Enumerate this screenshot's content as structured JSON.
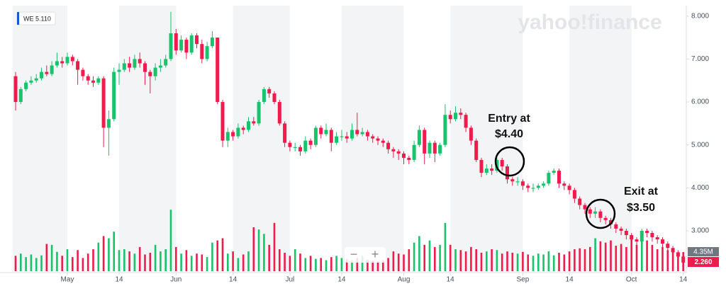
{
  "chart_data": {
    "type": "candlestick",
    "symbol_label": "WE 5.110",
    "watermark": "yahoo!finance",
    "up_color": "#17c36b",
    "down_color": "#ef1b4c",
    "ylim": [
      2.06,
      8.21
    ],
    "yticks": [
      {
        "value": 3,
        "label": "3.000"
      },
      {
        "value": 4,
        "label": "4.000"
      },
      {
        "value": 5,
        "label": "5.000"
      },
      {
        "value": 6,
        "label": "6.000"
      },
      {
        "value": 7,
        "label": "7.000"
      },
      {
        "value": 8,
        "label": "8.000"
      }
    ],
    "xticks": [
      {
        "value": 10,
        "label": "May"
      },
      {
        "value": 20,
        "label": "14"
      },
      {
        "value": 31,
        "label": "Jun"
      },
      {
        "value": 42,
        "label": "14"
      },
      {
        "value": 53,
        "label": "Jul"
      },
      {
        "value": 63,
        "label": "14"
      },
      {
        "value": 75,
        "label": "Aug"
      },
      {
        "value": 84,
        "label": "14"
      },
      {
        "value": 98,
        "label": "Sep"
      },
      {
        "value": 107,
        "label": "14"
      },
      {
        "value": 119,
        "label": "Oct"
      },
      {
        "value": 129,
        "label": "14"
      }
    ],
    "open": [
      6.6,
      6.0,
      6.3,
      6.45,
      6.5,
      6.55,
      6.7,
      6.65,
      6.85,
      6.95,
      6.9,
      7.05,
      6.95,
      6.75,
      6.6,
      6.5,
      6.45,
      6.55,
      5.4,
      5.6,
      6.7,
      6.75,
      6.9,
      6.8,
      7.0,
      6.9,
      6.7,
      6.6,
      6.8,
      6.85,
      7.0,
      7.6,
      7.2,
      7.45,
      7.15,
      7.55,
      7.35,
      7.0,
      7.3,
      7.5,
      6.0,
      5.1,
      5.3,
      5.2,
      5.4,
      5.35,
      5.55,
      5.5,
      6.0,
      6.3,
      6.2,
      6.0,
      5.5,
      5.05,
      4.95,
      4.95,
      4.85,
      5.1,
      5.0,
      5.4,
      5.25,
      5.35,
      5.05,
      5.2,
      5.2,
      5.15,
      5.35,
      5.25,
      5.3,
      5.2,
      5.15,
      5.1,
      5.05,
      4.9,
      4.85,
      4.8,
      4.7,
      4.65,
      5.0,
      5.35,
      4.8,
      5.05,
      4.8,
      5.0,
      5.7,
      5.6,
      5.75,
      5.7,
      5.4,
      5.1,
      4.65,
      4.35,
      4.45,
      4.4,
      4.65,
      4.5,
      4.2,
      4.15,
      4.15,
      4.05,
      4.0,
      4.0,
      4.05,
      4.1,
      4.35,
      4.4,
      4.1,
      4.05,
      3.95,
      3.75,
      3.6,
      3.5,
      3.4,
      3.45,
      3.3,
      3.25,
      3.15,
      3.05,
      3.0,
      2.9,
      2.8,
      2.75,
      3.0,
      2.95,
      2.85,
      2.8,
      2.7,
      2.6,
      2.5,
      2.4
    ],
    "high": [
      6.7,
      6.35,
      6.5,
      6.6,
      6.65,
      6.8,
      6.85,
      6.95,
      7.15,
      7.05,
      7.15,
      7.1,
      7.0,
      6.8,
      6.65,
      6.6,
      6.6,
      6.6,
      5.8,
      6.8,
      6.9,
      7.0,
      7.05,
      7.1,
      7.15,
      6.95,
      6.75,
      6.9,
      7.0,
      7.1,
      8.1,
      7.7,
      7.55,
      7.5,
      7.6,
      7.6,
      7.45,
      7.4,
      7.65,
      7.5,
      6.05,
      5.4,
      5.35,
      5.5,
      5.45,
      5.65,
      5.65,
      6.05,
      6.35,
      6.35,
      6.25,
      6.05,
      5.55,
      5.1,
      5.05,
      5.0,
      5.2,
      5.15,
      5.45,
      5.45,
      5.5,
      5.4,
      5.3,
      5.35,
      5.3,
      5.5,
      5.75,
      5.4,
      5.35,
      5.25,
      5.2,
      5.15,
      5.1,
      4.95,
      4.9,
      4.85,
      4.75,
      5.1,
      5.45,
      5.4,
      5.1,
      5.1,
      5.05,
      5.95,
      5.8,
      5.9,
      5.85,
      5.75,
      5.45,
      5.15,
      4.7,
      4.55,
      4.55,
      4.7,
      4.7,
      4.55,
      4.25,
      4.25,
      4.2,
      4.1,
      4.1,
      4.1,
      4.15,
      4.4,
      4.45,
      4.45,
      4.15,
      4.1,
      4.0,
      3.8,
      3.65,
      3.55,
      3.55,
      3.5,
      3.35,
      3.3,
      3.2,
      3.1,
      3.05,
      2.95,
      2.85,
      3.05,
      3.05,
      3.0,
      2.9,
      2.85,
      2.75,
      2.65,
      2.55,
      2.45
    ],
    "low": [
      5.8,
      5.95,
      6.25,
      6.4,
      6.45,
      6.5,
      6.6,
      6.6,
      6.8,
      6.8,
      6.85,
      6.85,
      6.4,
      6.5,
      6.4,
      6.35,
      6.4,
      4.95,
      4.75,
      5.55,
      6.4,
      6.7,
      6.7,
      6.75,
      6.8,
      6.4,
      6.2,
      6.5,
      6.7,
      6.8,
      6.95,
      7.1,
      7.15,
      7.0,
      7.1,
      7.25,
      6.9,
      6.95,
      7.25,
      5.95,
      4.95,
      4.95,
      5.1,
      5.15,
      5.25,
      5.3,
      5.45,
      5.45,
      5.95,
      6.1,
      5.95,
      5.45,
      4.95,
      4.85,
      4.85,
      4.75,
      4.8,
      4.9,
      4.95,
      5.15,
      5.2,
      4.85,
      5.0,
      5.1,
      5.05,
      5.1,
      5.2,
      5.2,
      5.1,
      5.05,
      5.0,
      4.95,
      4.8,
      4.7,
      4.65,
      4.55,
      4.55,
      4.6,
      4.95,
      4.55,
      4.7,
      4.6,
      4.75,
      4.95,
      5.5,
      5.55,
      5.6,
      5.3,
      5.0,
      4.6,
      4.25,
      4.3,
      4.3,
      4.35,
      4.4,
      4.1,
      4.05,
      4.05,
      3.95,
      3.9,
      3.9,
      3.95,
      4.0,
      4.05,
      4.3,
      4.0,
      3.95,
      3.85,
      3.65,
      3.5,
      3.4,
      3.3,
      3.3,
      3.2,
      3.15,
      3.05,
      2.95,
      2.9,
      2.8,
      2.7,
      2.65,
      2.7,
      2.85,
      2.75,
      2.7,
      2.6,
      2.5,
      2.4,
      2.3,
      2.2
    ],
    "close": [
      6.0,
      6.3,
      6.45,
      6.5,
      6.55,
      6.7,
      6.65,
      6.85,
      6.95,
      6.9,
      7.05,
      6.95,
      6.75,
      6.6,
      6.5,
      6.45,
      6.55,
      5.4,
      5.6,
      6.7,
      6.75,
      6.9,
      6.8,
      7.0,
      6.9,
      6.7,
      6.6,
      6.8,
      6.85,
      7.0,
      7.6,
      7.2,
      7.45,
      7.15,
      7.55,
      7.35,
      7.0,
      7.3,
      7.5,
      6.0,
      5.1,
      5.3,
      5.2,
      5.4,
      5.35,
      5.55,
      5.5,
      6.0,
      6.3,
      6.2,
      6.0,
      5.5,
      5.05,
      4.95,
      4.95,
      4.85,
      5.1,
      5.0,
      5.4,
      5.25,
      5.35,
      5.05,
      5.2,
      5.2,
      5.15,
      5.35,
      5.25,
      5.3,
      5.2,
      5.15,
      5.1,
      5.05,
      4.9,
      4.85,
      4.8,
      4.7,
      4.65,
      5.0,
      5.35,
      4.8,
      5.05,
      4.8,
      5.0,
      5.7,
      5.6,
      5.75,
      5.7,
      5.4,
      5.1,
      4.65,
      4.35,
      4.45,
      4.4,
      4.65,
      4.5,
      4.2,
      4.15,
      4.15,
      4.05,
      4.0,
      4.0,
      4.05,
      4.1,
      4.35,
      4.4,
      4.1,
      4.05,
      3.95,
      3.75,
      3.6,
      3.5,
      3.4,
      3.45,
      3.3,
      3.25,
      3.15,
      3.05,
      3.0,
      2.9,
      2.8,
      2.75,
      3.0,
      2.95,
      2.85,
      2.8,
      2.7,
      2.6,
      2.5,
      2.4,
      2.26
    ],
    "volume": [
      3.5,
      4.0,
      3.2,
      3.8,
      3.0,
      3.6,
      6.2,
      6.0,
      4.4,
      3.5,
      5.0,
      3.2,
      4.8,
      3.0,
      4.0,
      5.0,
      6.5,
      8.0,
      7.5,
      9.0,
      4.8,
      5.0,
      4.5,
      4.0,
      5.5,
      3.8,
      4.2,
      6.0,
      4.5,
      5.0,
      14.0,
      5.5,
      4.0,
      4.8,
      3.5,
      4.0,
      3.8,
      3.2,
      6.5,
      7.0,
      7.5,
      4.0,
      4.5,
      3.0,
      3.8,
      4.5,
      10.0,
      9.5,
      8.5,
      6.0,
      11.0,
      5.0,
      4.2,
      3.5,
      5.0,
      4.0,
      3.0,
      3.5,
      2.8,
      3.0,
      2.5,
      3.2,
      3.5,
      3.0,
      2.8,
      2.5,
      3.0,
      3.5,
      2.6,
      2.4,
      2.2,
      2.5,
      3.0,
      4.5,
      4.0,
      3.8,
      5.0,
      6.5,
      8.0,
      6.0,
      7.0,
      5.5,
      6.0,
      11.0,
      6.0,
      5.0,
      4.8,
      4.5,
      5.5,
      5.0,
      4.2,
      4.5,
      5.0,
      4.8,
      4.0,
      4.5,
      4.2,
      4.0,
      4.4,
      3.8,
      3.5,
      4.0,
      3.8,
      4.5,
      3.6,
      4.2,
      3.8,
      4.5,
      5.0,
      5.2,
      5.0,
      5.5,
      7.5,
      6.8,
      6.5,
      7.0,
      5.8,
      6.2,
      5.5,
      7.5,
      6.0,
      8.0,
      7.0,
      6.0,
      5.0,
      5.5,
      4.8,
      4.5,
      4.0,
      4.35
    ],
    "volume_tag": "4.35M",
    "price_tag": "2.260",
    "annotations": [
      {
        "lines": [
          "Entry at",
          "$4.40"
        ]
      },
      {
        "lines": [
          "Exit at",
          "$3.50"
        ]
      }
    ],
    "zoom_out": "−",
    "zoom_in": "+"
  }
}
